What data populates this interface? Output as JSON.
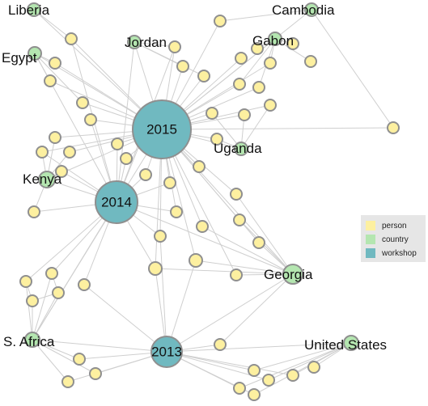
{
  "legend": [
    {
      "label": "person",
      "color": "#fdf0a0"
    },
    {
      "label": "country",
      "color": "#b4e6b0"
    },
    {
      "label": "workshop",
      "color": "#70b9c0"
    }
  ],
  "workshops": [
    "2015",
    "2014",
    "2013"
  ],
  "countries": [
    "Liberia",
    "Cambodia",
    "Egypt",
    "Jordan",
    "Gabon",
    "Uganda",
    "Kenya",
    "Georgia",
    "S. Africa",
    "United States"
  ],
  "colors": {
    "person": "#fdf0a0",
    "country": "#b4e6b0",
    "workshop": "#70b9c0",
    "stroke": "#8f8f8f",
    "edge": "#cfcfcf"
  }
}
